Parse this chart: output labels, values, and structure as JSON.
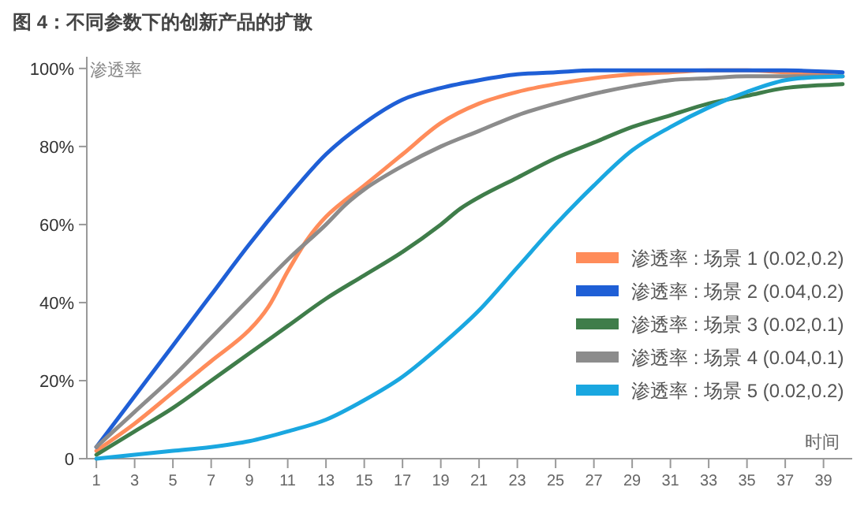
{
  "chart_data": {
    "type": "line",
    "title": "图 4：不同参数下的创新产品的扩散",
    "xlabel": "时间",
    "ylabel": "渗透率",
    "xlim": [
      0.5,
      40.5
    ],
    "xticks": [
      1,
      3,
      5,
      7,
      9,
      11,
      13,
      15,
      17,
      19,
      21,
      23,
      25,
      27,
      29,
      31,
      33,
      35,
      37,
      39
    ],
    "ylim": [
      0,
      103
    ],
    "yticks": [
      {
        "value": 0,
        "label": "0"
      },
      {
        "value": 20,
        "label": "20%"
      },
      {
        "value": 40,
        "label": "40%"
      },
      {
        "value": 60,
        "label": "60%"
      },
      {
        "value": 80,
        "label": "80%"
      },
      {
        "value": 100,
        "label": "100%"
      }
    ],
    "legend": "bottom right",
    "grid": false,
    "series": [
      {
        "name": "渗透率 : 场景 1 (0.02,0.2)",
        "color": "#ff8c5a",
        "x": [
          1,
          3,
          5,
          7,
          9,
          10,
          11,
          12,
          13,
          15,
          17,
          19,
          21,
          23,
          25,
          27,
          29,
          31,
          33,
          35,
          37,
          40
        ],
        "values": [
          2,
          9,
          17,
          25,
          33,
          39,
          48,
          56,
          62,
          70,
          78,
          86,
          91,
          94,
          96,
          97.5,
          98.5,
          99,
          99.5,
          99.5,
          99,
          98
        ]
      },
      {
        "name": "渗透率 : 场景 2 (0.04,0.2)",
        "color": "#1f5fd6",
        "x": [
          1,
          3,
          5,
          7,
          9,
          11,
          13,
          15,
          17,
          19,
          21,
          23,
          25,
          27,
          29,
          31,
          33,
          35,
          37,
          40
        ],
        "values": [
          3,
          16,
          29,
          42,
          55,
          67,
          78,
          86,
          92,
          95,
          97,
          98.5,
          99,
          99.5,
          99.5,
          99.5,
          99.5,
          99.5,
          99.5,
          99
        ]
      },
      {
        "name": "渗透率 : 场景 3 (0.02,0.1)",
        "color": "#3f7d4a",
        "x": [
          1,
          3,
          5,
          7,
          9,
          11,
          13,
          15,
          17,
          19,
          20,
          21,
          23,
          25,
          27,
          29,
          31,
          33,
          35,
          37,
          40
        ],
        "values": [
          1,
          7,
          13,
          20,
          27,
          34,
          41,
          47,
          53,
          60,
          64,
          67,
          72,
          77,
          81,
          85,
          88,
          91,
          93,
          95,
          96
        ]
      },
      {
        "name": "渗透率 : 场景 4 (0.04,0.1)",
        "color": "#8c8c8c",
        "x": [
          1,
          3,
          5,
          7,
          9,
          11,
          13,
          14,
          15,
          17,
          19,
          21,
          23,
          25,
          27,
          29,
          31,
          33,
          35,
          37,
          40
        ],
        "values": [
          3,
          12,
          21,
          31,
          41,
          51,
          60,
          65,
          69,
          75,
          80,
          84,
          88,
          91,
          93.5,
          95.5,
          97,
          97.5,
          98,
          98,
          98
        ]
      },
      {
        "name": "渗透率 : 场景 5 (0.02,0.2)",
        "color": "#1aa7e0",
        "x": [
          1,
          3,
          5,
          7,
          9,
          11,
          13,
          15,
          17,
          19,
          21,
          23,
          25,
          27,
          29,
          31,
          33,
          35,
          37,
          40
        ],
        "values": [
          0,
          1,
          2,
          3,
          4.5,
          7,
          10,
          15,
          21,
          29,
          38,
          49,
          60,
          70,
          79,
          85,
          90,
          94,
          97,
          98
        ]
      }
    ]
  }
}
